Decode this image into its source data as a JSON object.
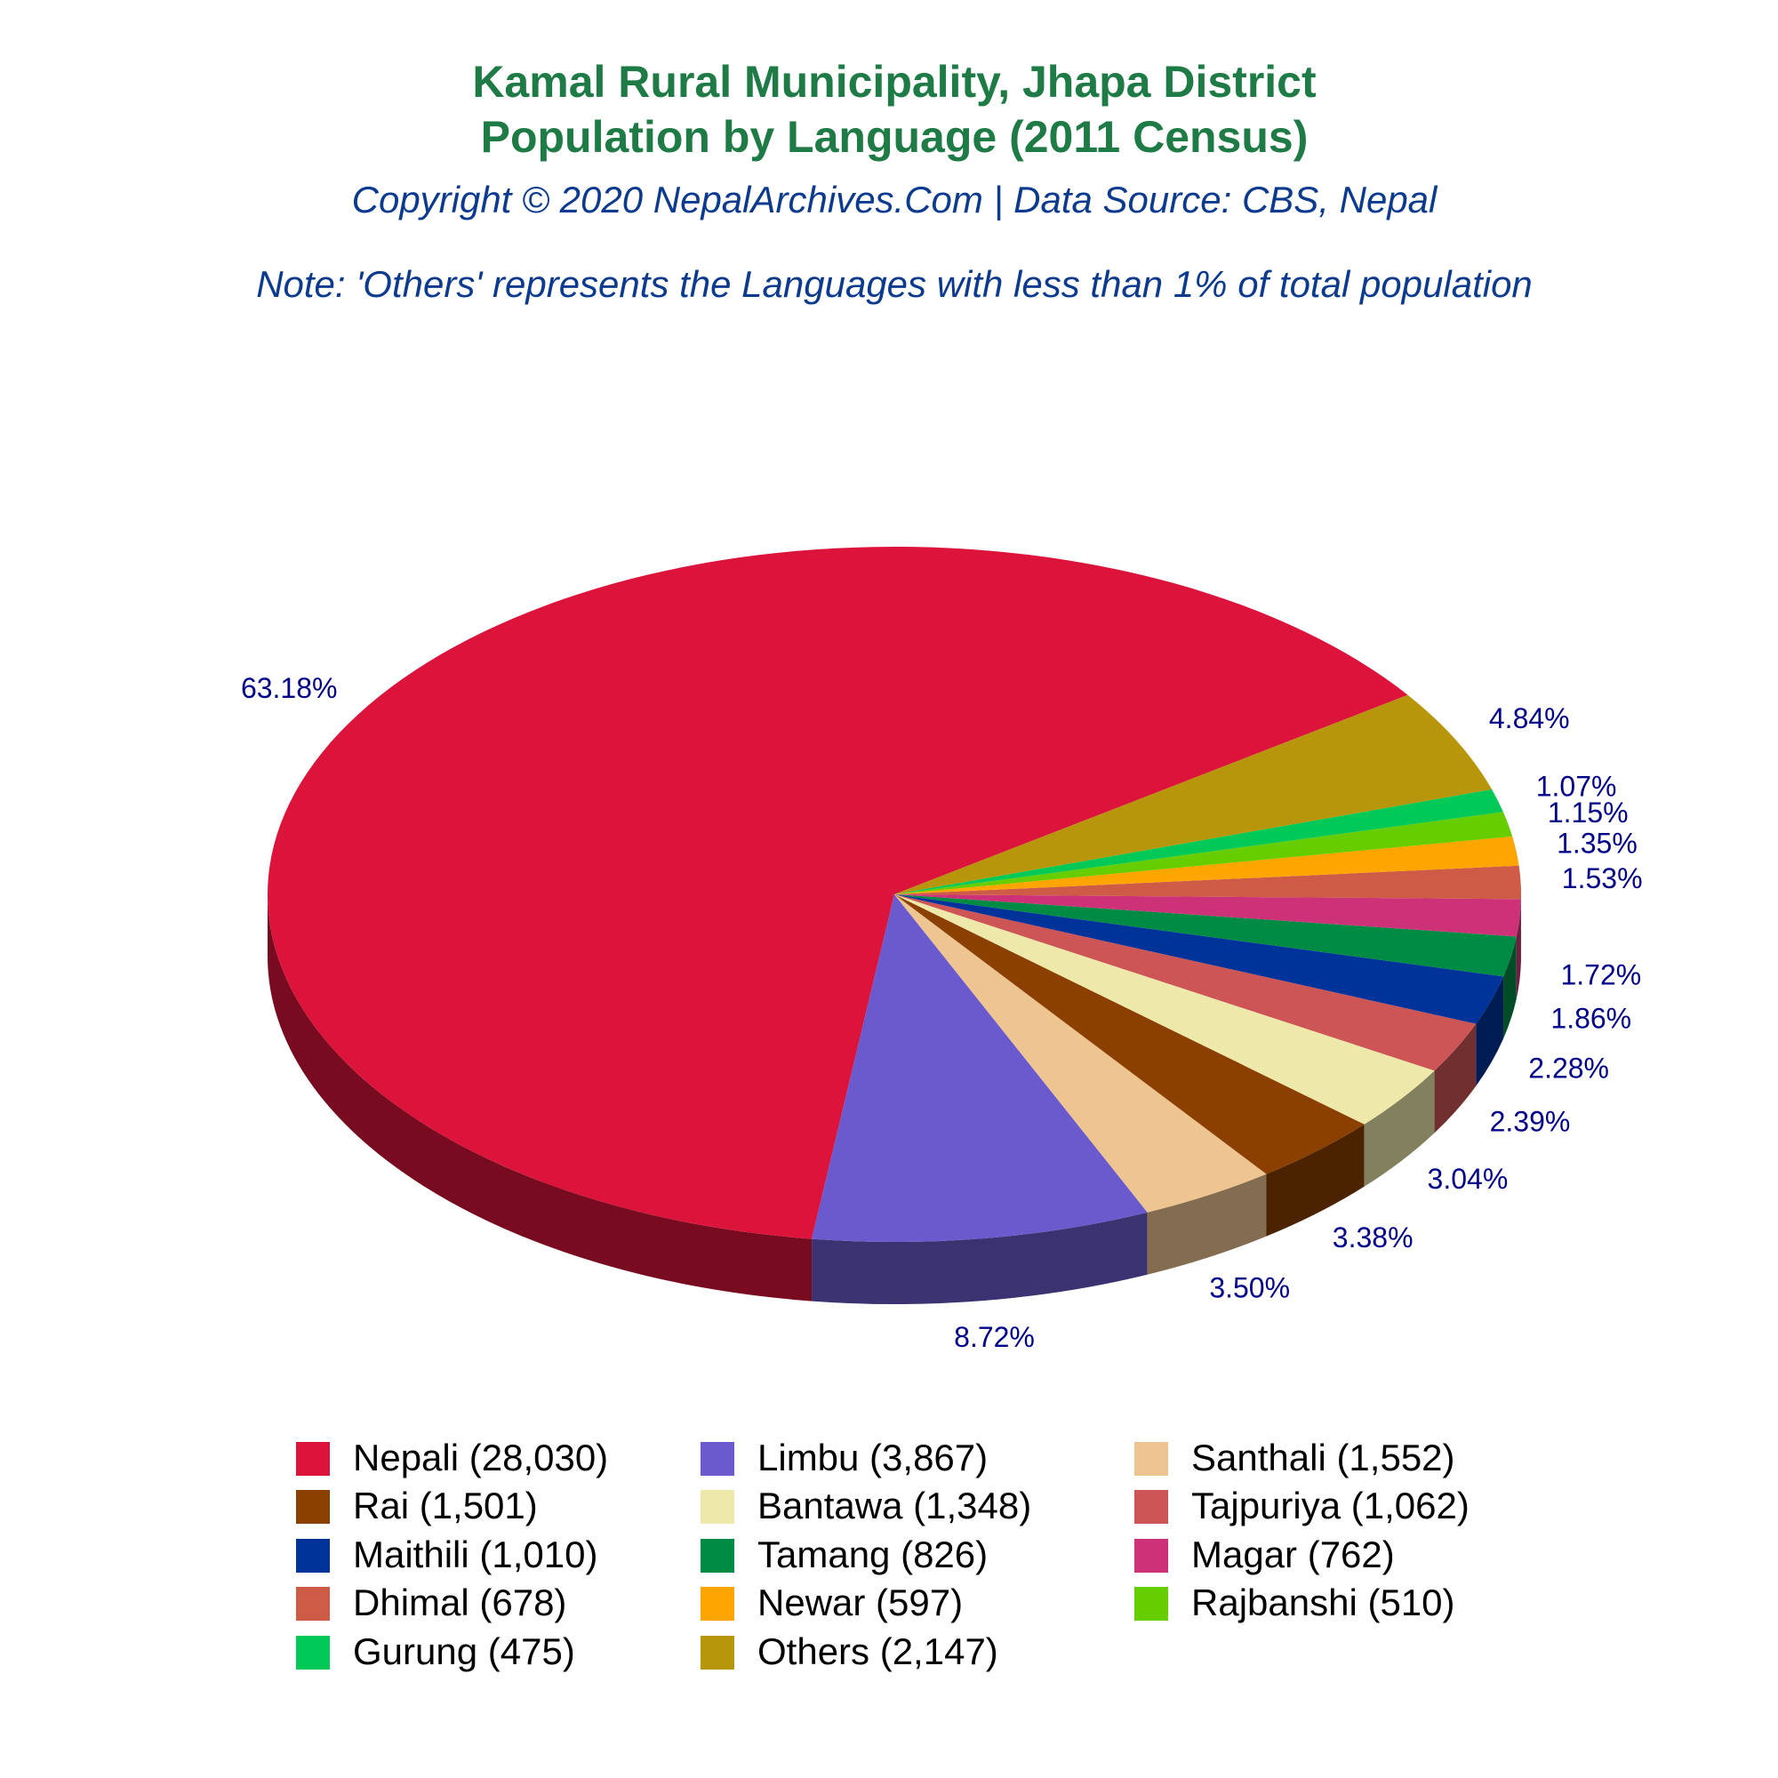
{
  "chart_data": {
    "type": "pie",
    "title": "Kamal Rural Municipality, Jhapa District",
    "subtitle": "Population by Language (2011 Census)",
    "copyright": "Copyright © 2020 NepalArchives.Com | Data Source: CBS, Nepal",
    "note": "Note: 'Others' represents the Languages with less than 1% of total population",
    "categories": [
      "Nepali (28,030)",
      "Limbu (3,867)",
      "Santhali (1,552)",
      "Rai (1,501)",
      "Bantawa (1,348)",
      "Tajpuriya (1,062)",
      "Maithili (1,010)",
      "Tamang (826)",
      "Magar (762)",
      "Dhimal (678)",
      "Newar (597)",
      "Rajbanshi (510)",
      "Gurung (475)",
      "Others (2,147)"
    ],
    "values": [
      63.18,
      8.72,
      3.5,
      3.38,
      3.04,
      2.39,
      2.28,
      1.86,
      1.72,
      1.53,
      1.35,
      1.15,
      1.07,
      4.84
    ],
    "value_labels": [
      "63.18%",
      "8.72%",
      "3.50%",
      "3.38%",
      "3.04%",
      "2.39%",
      "2.28%",
      "1.86%",
      "1.72%",
      "1.53%",
      "1.35%",
      "1.15%",
      "1.07%",
      "4.84%"
    ],
    "colors": [
      "#DC143C",
      "#6A5ACD",
      "#EEC591",
      "#8B4000",
      "#EEE8AA",
      "#CD5555",
      "#003399",
      "#008B45",
      "#CD3278",
      "#CD5B45",
      "#FFA500",
      "#66CD00",
      "#00C957",
      "#B8960B"
    ]
  }
}
